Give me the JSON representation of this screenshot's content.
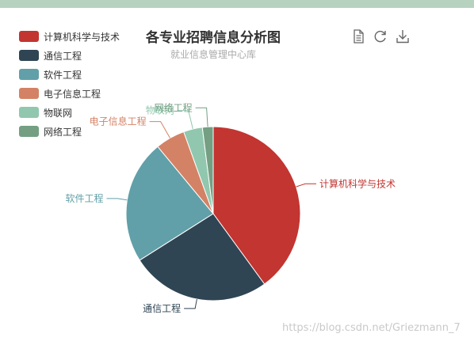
{
  "chart_data": {
    "type": "pie",
    "title": "各专业招聘信息分析图",
    "subtitle": "就业信息管理中心库",
    "categories": [
      "计算机科学与技术",
      "通信工程",
      "软件工程",
      "电子信息工程",
      "物联网",
      "网络工程"
    ],
    "values": [
      40,
      26,
      23,
      5.5,
      3.5,
      2
    ],
    "colors": [
      "#c23531",
      "#2f4554",
      "#61a0a8",
      "#d48265",
      "#91c7ae",
      "#749f83"
    ],
    "legend_position": "top-left",
    "label_position": "outside"
  },
  "toolbox": {
    "icons": [
      "data-view-icon",
      "restore-icon",
      "save-image-icon"
    ]
  },
  "watermark": "https://blog.csdn.net/Griezmann_7"
}
